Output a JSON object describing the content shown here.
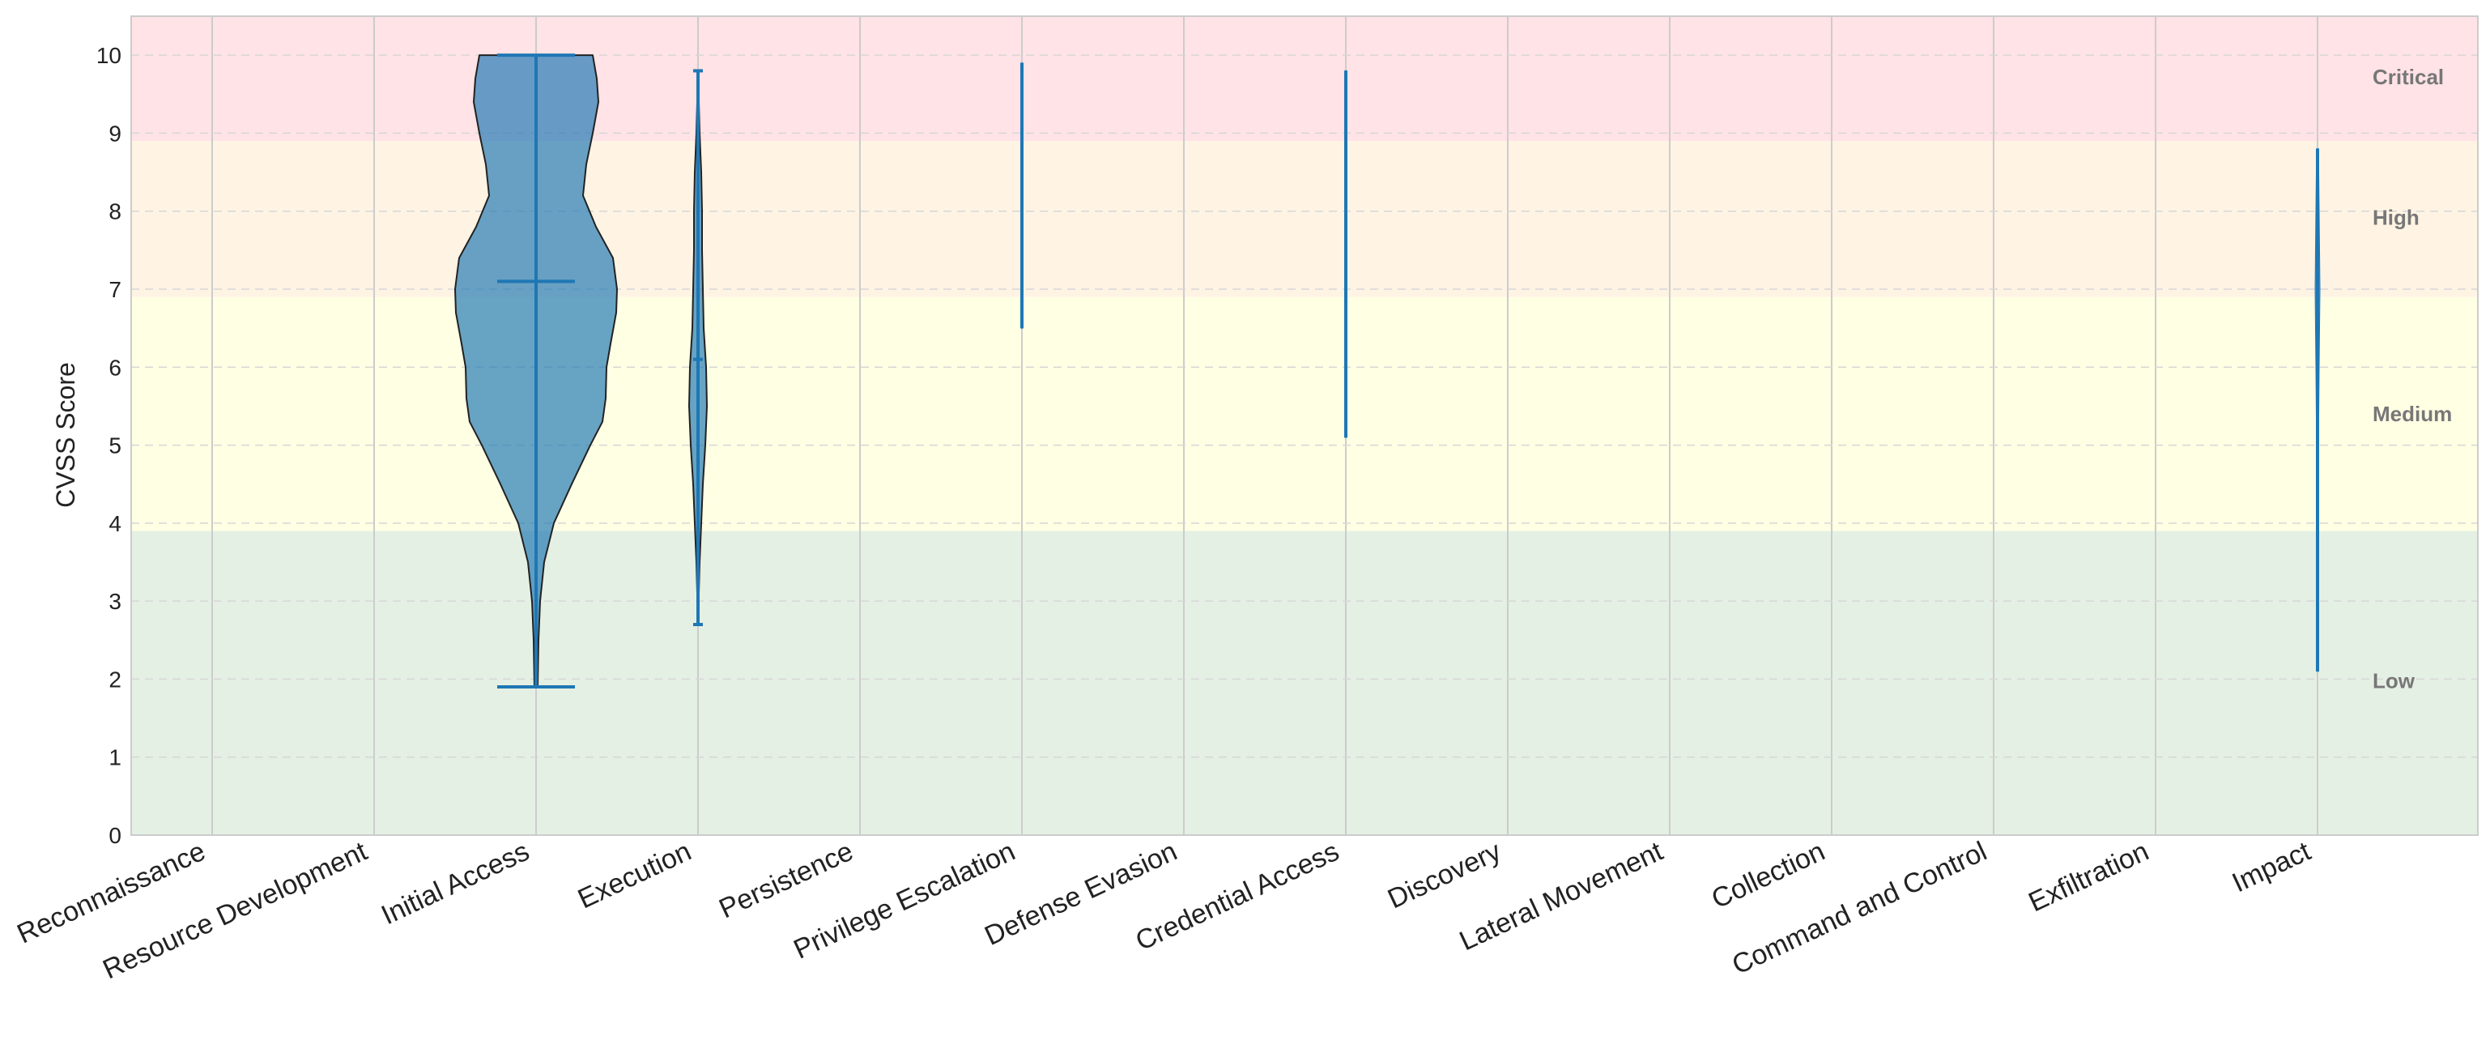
{
  "chart_data": {
    "type": "violin",
    "ylabel": "CVSS Score",
    "ylim": [
      0,
      10.5
    ],
    "yticks": [
      0,
      1,
      2,
      3,
      4,
      5,
      6,
      7,
      8,
      9,
      10
    ],
    "grid": true,
    "categories": [
      "Reconnaissance",
      "Resource Development",
      "Initial Access",
      "Execution",
      "Persistence",
      "Privilege Escalation",
      "Defense Evasion",
      "Credential Access",
      "Discovery",
      "Lateral Movement",
      "Collection",
      "Command and Control",
      "Exfiltration",
      "Impact"
    ],
    "severity_bands": [
      {
        "label": "Low",
        "from": 0,
        "to": 3.9,
        "color": "#e5f0e4"
      },
      {
        "label": "Medium",
        "from": 3.9,
        "to": 6.9,
        "color": "#ffffe4"
      },
      {
        "label": "High",
        "from": 6.9,
        "to": 8.9,
        "color": "#fff4e4"
      },
      {
        "label": "Critical",
        "from": 8.9,
        "to": 10.5,
        "color": "#ffe3e6"
      }
    ],
    "violin_color": "#1f77b4",
    "violins": [
      {
        "category": "Initial Access",
        "min": 1.9,
        "max": 10.0,
        "mean": 7.1,
        "density": [
          [
            1.9,
            0.02
          ],
          [
            2.5,
            0.03
          ],
          [
            3.0,
            0.05
          ],
          [
            3.5,
            0.1
          ],
          [
            4.0,
            0.22
          ],
          [
            4.5,
            0.44
          ],
          [
            5.0,
            0.67
          ],
          [
            5.3,
            0.82
          ],
          [
            5.6,
            0.86
          ],
          [
            6.0,
            0.87
          ],
          [
            6.3,
            0.92
          ],
          [
            6.7,
            0.99
          ],
          [
            7.0,
            1.0
          ],
          [
            7.4,
            0.95
          ],
          [
            7.8,
            0.74
          ],
          [
            8.2,
            0.58
          ],
          [
            8.6,
            0.62
          ],
          [
            9.0,
            0.7
          ],
          [
            9.4,
            0.77
          ],
          [
            9.7,
            0.75
          ],
          [
            10.0,
            0.7
          ]
        ]
      },
      {
        "category": "Execution",
        "min": 2.7,
        "max": 9.8,
        "mean": 6.1,
        "density": [
          [
            2.7,
            0.0
          ],
          [
            3.5,
            0.02
          ],
          [
            4.5,
            0.06
          ],
          [
            5.0,
            0.09
          ],
          [
            5.5,
            0.11
          ],
          [
            6.0,
            0.1
          ],
          [
            6.5,
            0.07
          ],
          [
            7.0,
            0.06
          ],
          [
            7.5,
            0.05
          ],
          [
            8.0,
            0.05
          ],
          [
            8.5,
            0.04
          ],
          [
            9.0,
            0.02
          ],
          [
            9.8,
            0.0
          ]
        ]
      },
      {
        "category": "Privilege Escalation",
        "min": 6.5,
        "max": 9.9,
        "mean": 8.2,
        "density": [
          [
            6.5,
            0.01
          ],
          [
            9.9,
            0.01
          ]
        ]
      },
      {
        "category": "Credential Access",
        "min": 5.1,
        "max": 9.8,
        "mean": 7.4,
        "density": [
          [
            5.1,
            0.01
          ],
          [
            9.8,
            0.01
          ]
        ]
      },
      {
        "category": "Impact",
        "min": 2.1,
        "max": 8.8,
        "mean": 6.9,
        "density": [
          [
            2.1,
            0.01
          ],
          [
            5.0,
            0.01
          ],
          [
            6.0,
            0.02
          ],
          [
            7.0,
            0.03
          ],
          [
            8.0,
            0.02
          ],
          [
            8.8,
            0.01
          ]
        ]
      }
    ]
  }
}
